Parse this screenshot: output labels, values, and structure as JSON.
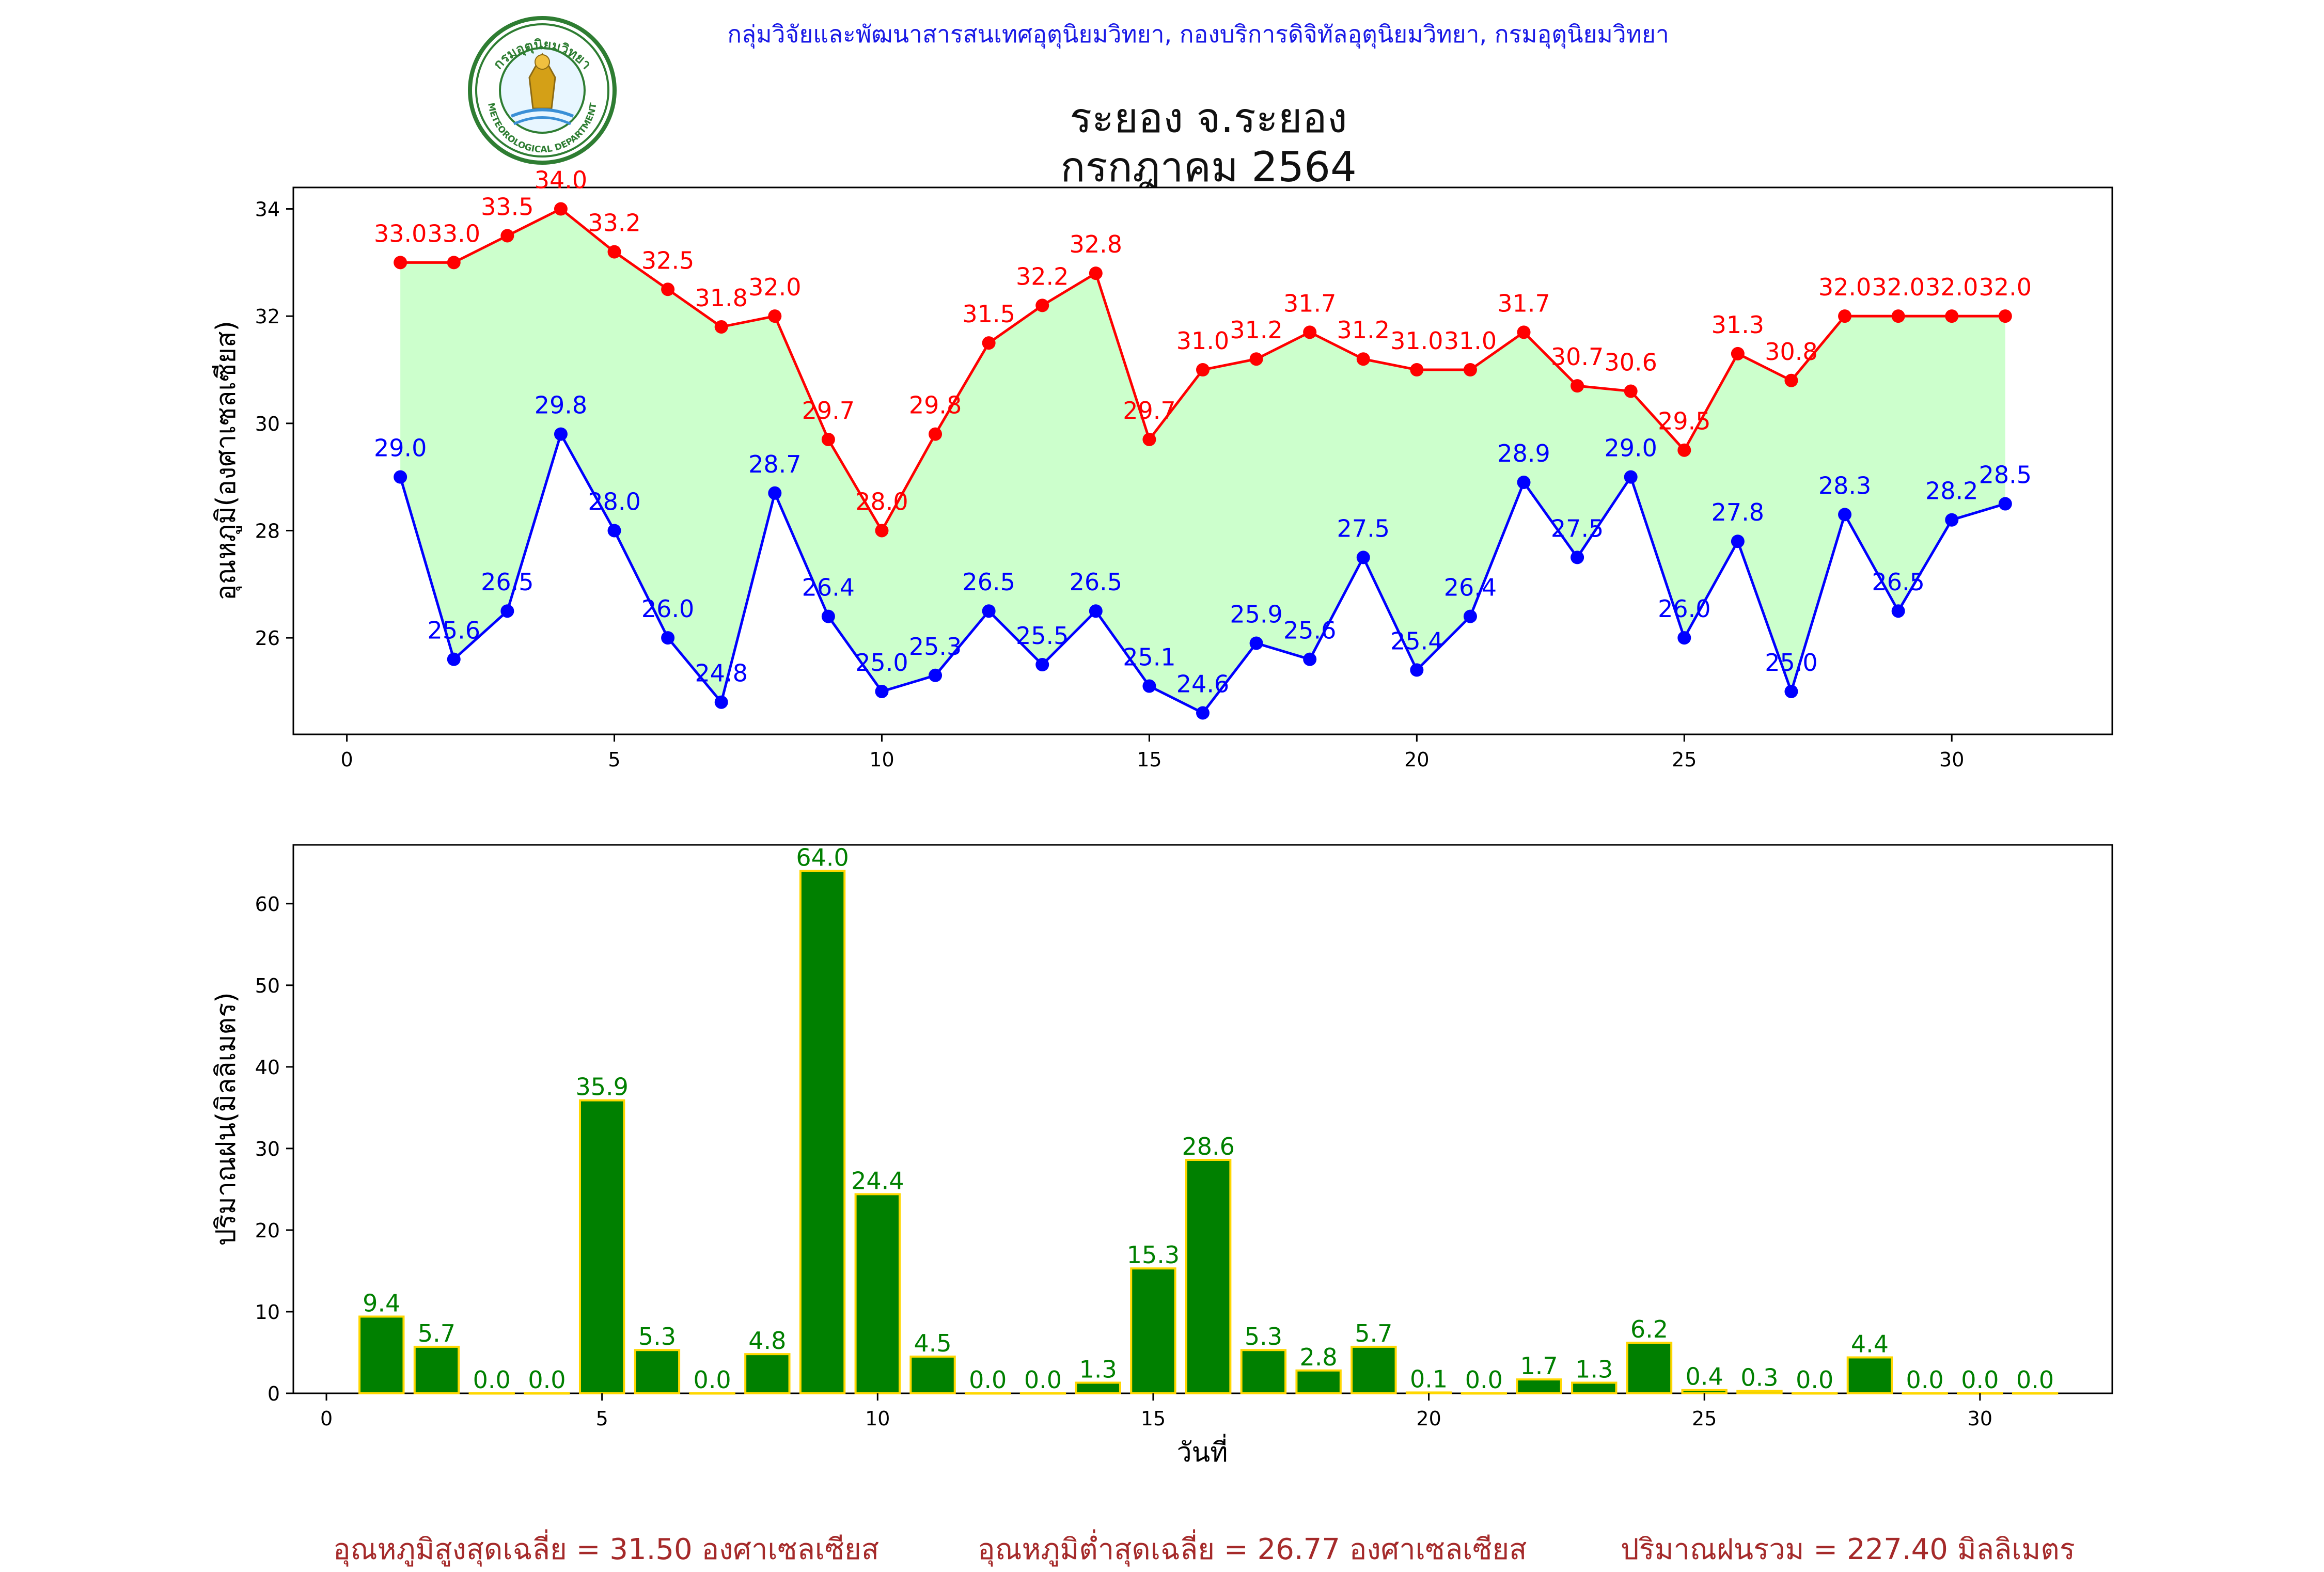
{
  "header": {
    "organization_line": "กลุ่มวิจัยและพัฒนาสารสนเทศอุตุนิยมวิทยา, กองบริการดิจิทัลอุตุนิยมวิทยา, กรมอุตุนิยมวิทยา",
    "title_line1": "ระยอง จ.ระยอง",
    "title_line2": "กรกฎาคม 2564",
    "logo_text_top": "กรมอุตุนิยมวิทยา",
    "logo_text_bottom": "METEOROLOGICAL DEPARTMENT"
  },
  "colors": {
    "max_line": "#ff0000",
    "min_line": "#0000ff",
    "fill": "#ccffcc",
    "bar_fill": "#008000",
    "bar_edge": "#ffd700",
    "bar_label": "#008000",
    "footer_text": "#a52a2a",
    "header_text": "#1a1ae6"
  },
  "chart_data": [
    {
      "type": "line",
      "ylabel": "อุณหภูมิ(องศาเซลเซียส)",
      "xlabel": "",
      "xlim": [
        -1,
        33
      ],
      "ylim": [
        24.2,
        34.4
      ],
      "xticks": [
        0,
        5,
        10,
        15,
        20,
        25,
        30
      ],
      "yticks": [
        26,
        28,
        30,
        32,
        34
      ],
      "x": [
        1,
        2,
        3,
        4,
        5,
        6,
        7,
        8,
        9,
        10,
        11,
        12,
        13,
        14,
        15,
        16,
        17,
        18,
        19,
        20,
        21,
        22,
        23,
        24,
        25,
        26,
        27,
        28,
        29,
        30,
        31
      ],
      "series": [
        {
          "key": "max",
          "values": [
            33.0,
            33.0,
            33.5,
            34.0,
            33.2,
            32.5,
            31.8,
            32.0,
            29.7,
            28.0,
            29.8,
            31.5,
            32.2,
            32.8,
            29.7,
            31.0,
            31.2,
            31.7,
            31.2,
            31.0,
            31.0,
            31.7,
            30.7,
            30.6,
            29.5,
            31.3,
            30.8,
            32.0,
            32.0,
            32.0,
            32.0
          ],
          "labels": [
            "33.0",
            "33.0",
            "33.5",
            "34.0",
            "33.2",
            "32.5",
            "31.8",
            "32.0",
            "29.7",
            "28.0",
            "29.8",
            "31.5",
            "32.2",
            "32.8",
            "29.7",
            "31.0",
            "31.2",
            "31.7",
            "31.2",
            "31.0",
            "31.0",
            "31.7",
            "30.7",
            "30.6",
            "29.5",
            "31.3",
            "30.8",
            "32.0",
            "32.0",
            "32.0",
            "32.0"
          ]
        },
        {
          "key": "min",
          "values": [
            29.0,
            25.6,
            26.5,
            29.8,
            28.0,
            26.0,
            24.8,
            28.7,
            26.4,
            25.0,
            25.3,
            26.5,
            25.5,
            26.5,
            25.1,
            24.6,
            25.9,
            25.6,
            27.5,
            25.4,
            26.4,
            28.9,
            27.5,
            29.0,
            26.0,
            27.8,
            25.0,
            28.3,
            26.5,
            28.2,
            28.5
          ],
          "labels": [
            "29.0",
            "25.6",
            "26.5",
            "29.8",
            "28.0",
            "26.0",
            "24.8",
            "28.7",
            "26.4",
            "25.0",
            "25.3",
            "26.5",
            "25.5",
            "26.5",
            "25.1",
            "24.6",
            "25.9",
            "25.6",
            "27.5",
            "25.4",
            "26.4",
            "28.9",
            "27.5",
            "29.0",
            "26.0",
            "27.8",
            "25.0",
            "28.3",
            "26.5",
            "28.2",
            "28.5"
          ]
        }
      ]
    },
    {
      "type": "bar",
      "ylabel": "ปริมาณฝน(มิลลิเมตร)",
      "xlabel": "วันที่",
      "xlim": [
        -0.6,
        32.4
      ],
      "ylim": [
        0,
        67.2
      ],
      "xticks": [
        0,
        5,
        10,
        15,
        20,
        25,
        30
      ],
      "yticks": [
        0,
        10,
        20,
        30,
        40,
        50,
        60
      ],
      "x": [
        1,
        2,
        3,
        4,
        5,
        6,
        7,
        8,
        9,
        10,
        11,
        12,
        13,
        14,
        15,
        16,
        17,
        18,
        19,
        20,
        21,
        22,
        23,
        24,
        25,
        26,
        27,
        28,
        29,
        30,
        31
      ],
      "values": [
        9.4,
        5.7,
        0.0,
        0.0,
        35.9,
        5.3,
        0.0,
        4.8,
        64.0,
        24.4,
        4.5,
        0.0,
        0.0,
        1.3,
        15.3,
        28.6,
        5.3,
        2.8,
        5.7,
        0.1,
        0.0,
        1.7,
        1.3,
        6.2,
        0.4,
        0.3,
        0.0,
        4.4,
        0.0,
        0.0,
        0.0
      ],
      "labels": [
        "9.4",
        "5.7",
        "0.0",
        "0.0",
        "35.9",
        "5.3",
        "0.0",
        "4.8",
        "64.0",
        "24.4",
        "4.5",
        "0.0",
        "0.0",
        "1.3",
        "15.3",
        "28.6",
        "5.3",
        "2.8",
        "5.7",
        "0.1",
        "0.0",
        "1.7",
        "1.3",
        "6.2",
        "0.4",
        "0.3",
        "0.0",
        "4.4",
        "0.0",
        "0.0",
        "0.0"
      ]
    }
  ],
  "footer": {
    "avg_max": "อุณหภูมิสูงสุดเฉลี่ย = 31.50 องศาเซลเซียส",
    "avg_min": "อุณหภูมิต่ำสุดเฉลี่ย = 26.77 องศาเซลเซียส",
    "total_rain": "ปริมาณฝนรวม = 227.40 มิลลิเมตร"
  }
}
